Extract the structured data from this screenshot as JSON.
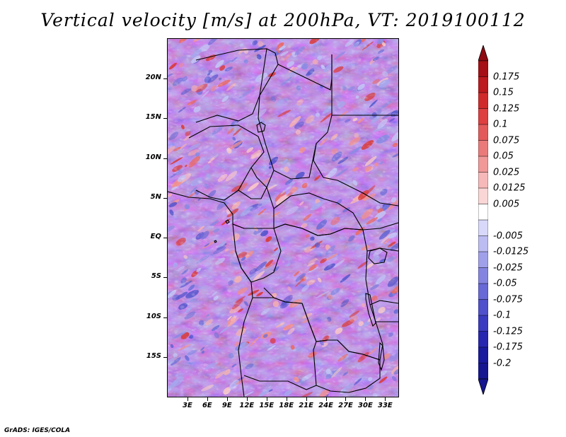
{
  "figure": {
    "title": "Vertical velocity [m/s] at 200hPa, VT: 2019100112",
    "credit": "GrADS: IGES/COLA"
  },
  "map": {
    "lon_range": [
      0,
      35
    ],
    "lat_range": [
      -20,
      25
    ],
    "lat_ticks": [
      {
        "value": 20,
        "label": "20N"
      },
      {
        "value": 15,
        "label": "15N"
      },
      {
        "value": 10,
        "label": "10N"
      },
      {
        "value": 5,
        "label": "5N"
      },
      {
        "value": 0,
        "label": "EQ"
      },
      {
        "value": -5,
        "label": "5S"
      },
      {
        "value": -10,
        "label": "10S"
      },
      {
        "value": -15,
        "label": "15S"
      }
    ],
    "lon_ticks": [
      {
        "value": 3,
        "label": "3E"
      },
      {
        "value": 6,
        "label": "6E"
      },
      {
        "value": 9,
        "label": "9E"
      },
      {
        "value": 12,
        "label": "12E"
      },
      {
        "value": 15,
        "label": "15E"
      },
      {
        "value": 18,
        "label": "18E"
      },
      {
        "value": 21,
        "label": "21E"
      },
      {
        "value": 24,
        "label": "24E"
      },
      {
        "value": 27,
        "label": "27E"
      },
      {
        "value": 30,
        "label": "30E"
      },
      {
        "value": 33,
        "label": "33E"
      }
    ]
  },
  "colorbar": {
    "levels": [
      {
        "label": "0.175",
        "color": "#a50f15"
      },
      {
        "label": "0.15",
        "color": "#bc1a1e"
      },
      {
        "label": "0.125",
        "color": "#d12a2a"
      },
      {
        "label": "0.1",
        "color": "#de3f3f"
      },
      {
        "label": "0.075",
        "color": "#e35a5a"
      },
      {
        "label": "0.05",
        "color": "#ea7a7a"
      },
      {
        "label": "0.025",
        "color": "#f19898"
      },
      {
        "label": "0.0125",
        "color": "#f6b8b8"
      },
      {
        "label": "0.005",
        "color": "#fbd6d6"
      },
      {
        "label": "",
        "color": "#ffffff"
      },
      {
        "label": "-0.005",
        "color": "#d8d8fa"
      },
      {
        "label": "-0.0125",
        "color": "#bcbcf2"
      },
      {
        "label": "-0.025",
        "color": "#a0a0ea"
      },
      {
        "label": "-0.05",
        "color": "#8484e0"
      },
      {
        "label": "-0.075",
        "color": "#6868d6"
      },
      {
        "label": "-0.1",
        "color": "#5050cc"
      },
      {
        "label": "-0.125",
        "color": "#3a3ac0"
      },
      {
        "label": "-0.175",
        "color": "#2626b0"
      },
      {
        "label": "-0.2",
        "color": "#1a1a9e"
      }
    ],
    "top_color": "#8e0a10",
    "bottom_color": "#161690"
  }
}
